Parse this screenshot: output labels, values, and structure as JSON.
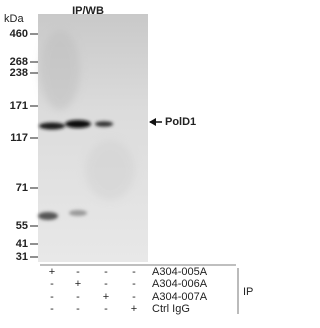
{
  "header": {
    "title": "IP/WB",
    "unit": "kDa"
  },
  "markers": [
    "460",
    "268",
    "238",
    "171",
    "117",
    "71",
    "55",
    "41",
    "31"
  ],
  "target": "PolD1",
  "table": {
    "rows": [
      {
        "signs": [
          "+",
          "-",
          "-",
          "-"
        ],
        "label": "A304-005A"
      },
      {
        "signs": [
          "-",
          "+",
          "-",
          "-"
        ],
        "label": "A304-006A"
      },
      {
        "signs": [
          "-",
          "-",
          "+",
          "-"
        ],
        "label": "A304-007A"
      },
      {
        "signs": [
          "-",
          "-",
          "-",
          "+"
        ],
        "label": "Ctrl IgG"
      }
    ]
  },
  "group_label": "IP"
}
